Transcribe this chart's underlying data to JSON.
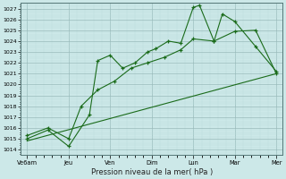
{
  "xlabel": "Pression niveau de la mer( hPa )",
  "x_labels": [
    "Ve6am",
    "Jeu",
    "Ven",
    "Dim",
    "Lun",
    "Mar",
    "Mer"
  ],
  "x_tick_pos": [
    0,
    1,
    2,
    3,
    4,
    5,
    6
  ],
  "ylim": [
    1013.5,
    1027.5
  ],
  "yticks": [
    1014,
    1015,
    1016,
    1017,
    1018,
    1019,
    1020,
    1021,
    1022,
    1023,
    1024,
    1025,
    1026,
    1027
  ],
  "line_color": "#1a6b1a",
  "bg_color": "#cce8e8",
  "grid_major_color": "#99bbbb",
  "grid_minor_color": "#bbdddd",
  "line1_x": [
    0,
    0.5,
    1.0,
    1.5,
    1.7,
    2.0,
    2.3,
    2.6,
    2.9,
    3.1,
    3.4,
    3.7,
    4.0,
    4.15,
    4.5,
    4.7,
    5.0,
    5.5,
    6.0
  ],
  "line1_y": [
    1015.0,
    1015.8,
    1014.3,
    1017.2,
    1022.2,
    1022.7,
    1021.5,
    1022.0,
    1023.0,
    1023.3,
    1024.0,
    1023.8,
    1027.1,
    1027.3,
    1024.0,
    1026.5,
    1025.8,
    1023.5,
    1021.2
  ],
  "line2_x": [
    0,
    0.5,
    1.0,
    1.3,
    1.7,
    2.1,
    2.5,
    2.9,
    3.3,
    3.7,
    4.0,
    4.5,
    5.0,
    5.5,
    6.0
  ],
  "line2_y": [
    1015.3,
    1016.0,
    1015.0,
    1018.0,
    1019.5,
    1020.3,
    1021.5,
    1022.0,
    1022.5,
    1023.2,
    1024.2,
    1024.0,
    1024.9,
    1025.0,
    1021.0
  ],
  "line3_x": [
    0,
    6.0
  ],
  "line3_y": [
    1014.8,
    1021.0
  ]
}
